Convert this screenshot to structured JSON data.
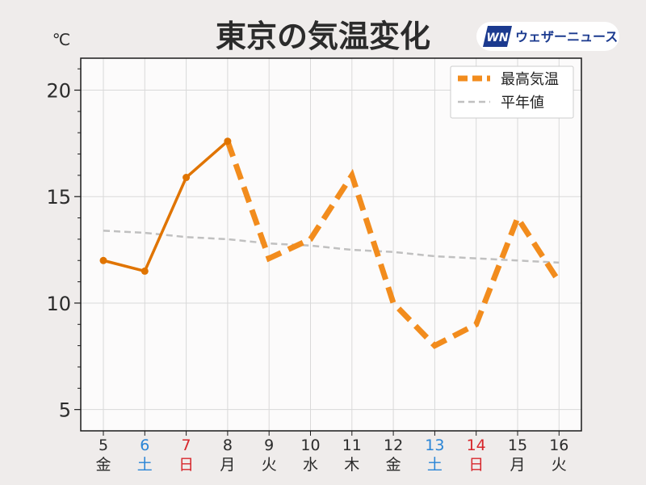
{
  "header": {
    "title": "東京の気温変化",
    "unit": "℃"
  },
  "logo": {
    "mark": "WN",
    "text": "ウェザーニュース",
    "color": "#1b3a8f"
  },
  "colors": {
    "observed": "#e07400",
    "forecast": "#f28c1d",
    "normal": "#c0c0c0",
    "saturday": "#2a85d6",
    "sunday": "#d7262b",
    "weekday": "#2b2b2b",
    "plot_bg": "#fcfbfb",
    "grid": "#d9d9d9"
  },
  "chart_data": {
    "type": "line",
    "title": "東京の気温変化",
    "ylabel": "℃",
    "ylim": [
      4,
      21.5
    ],
    "yticks": [
      5,
      10,
      15,
      20
    ],
    "grid": true,
    "legend_position": "top-right",
    "categories": [
      {
        "day": "5",
        "weekday": "金",
        "kind": "weekday"
      },
      {
        "day": "6",
        "weekday": "土",
        "kind": "saturday"
      },
      {
        "day": "7",
        "weekday": "日",
        "kind": "sunday"
      },
      {
        "day": "8",
        "weekday": "月",
        "kind": "weekday"
      },
      {
        "day": "9",
        "weekday": "火",
        "kind": "weekday"
      },
      {
        "day": "10",
        "weekday": "水",
        "kind": "weekday"
      },
      {
        "day": "11",
        "weekday": "木",
        "kind": "weekday"
      },
      {
        "day": "12",
        "weekday": "金",
        "kind": "weekday"
      },
      {
        "day": "13",
        "weekday": "土",
        "kind": "saturday"
      },
      {
        "day": "14",
        "weekday": "日",
        "kind": "sunday"
      },
      {
        "day": "15",
        "weekday": "月",
        "kind": "weekday"
      },
      {
        "day": "16",
        "weekday": "火",
        "kind": "weekday"
      }
    ],
    "series": [
      {
        "name": "最高気温",
        "values": [
          12.0,
          11.5,
          15.9,
          17.6,
          12.1,
          13.0,
          16.0,
          10.0,
          8.0,
          9.0,
          14.0,
          11.0
        ],
        "observed_count": 4,
        "style": "solid observed, dashed forecast"
      },
      {
        "name": "平年値",
        "values": [
          13.4,
          13.3,
          13.1,
          13.0,
          12.8,
          12.7,
          12.5,
          12.4,
          12.2,
          12.1,
          12.0,
          11.9
        ],
        "style": "dashed"
      }
    ]
  }
}
